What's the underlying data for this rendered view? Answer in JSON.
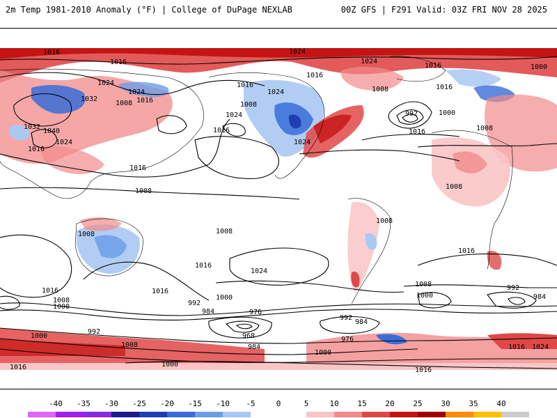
{
  "header": {
    "left_title": "2m Temp 1981-2010 Anomaly (°F) | College of DuPage NEXLAB",
    "right_title": "00Z GFS | F291 Valid: 03Z FRI NOV 28 2025"
  },
  "map": {
    "isobar_labels": [
      "1016",
      "1024",
      "1016",
      "1024",
      "1024",
      "1032",
      "1008",
      "1016",
      "1032",
      "1040",
      "1024",
      "1016",
      "1024",
      "1016",
      "1024",
      "1008",
      "1016",
      "1024",
      "1016",
      "1024",
      "1008",
      "1016",
      "1000",
      "992",
      "1000",
      "1016",
      "1016",
      "1008",
      "1008",
      "1016",
      "1008",
      "1008",
      "1008",
      "1008",
      "1016",
      "1024",
      "1016",
      "1016",
      "1016",
      "1008",
      "1000",
      "1000",
      "992",
      "984",
      "976",
      "968",
      "992",
      "984",
      "976",
      "984",
      "1000",
      "1008",
      "992",
      "1000",
      "1000",
      "1016",
      "1016",
      "1024",
      "1016",
      "1008",
      "1000",
      "992",
      "984"
    ]
  },
  "colorbar": {
    "ticks": [
      "-40",
      "-35",
      "-30",
      "-25",
      "-20",
      "-15",
      "-10",
      "-5",
      "0",
      "5",
      "10",
      "15",
      "20",
      "25",
      "30",
      "35",
      "40"
    ],
    "colors": [
      "#e066ff",
      "#a020f0",
      "#8a2be2",
      "#1c1c8c",
      "#1e3fb0",
      "#3a6cd8",
      "#6e9de6",
      "#a9c8f2",
      "#ffffff",
      "#ffffff",
      "#f9c5c5",
      "#f28a8a",
      "#e04848",
      "#c41414",
      "#9e0000",
      "#ff8c00",
      "#ffc000",
      "#cccccc"
    ]
  }
}
